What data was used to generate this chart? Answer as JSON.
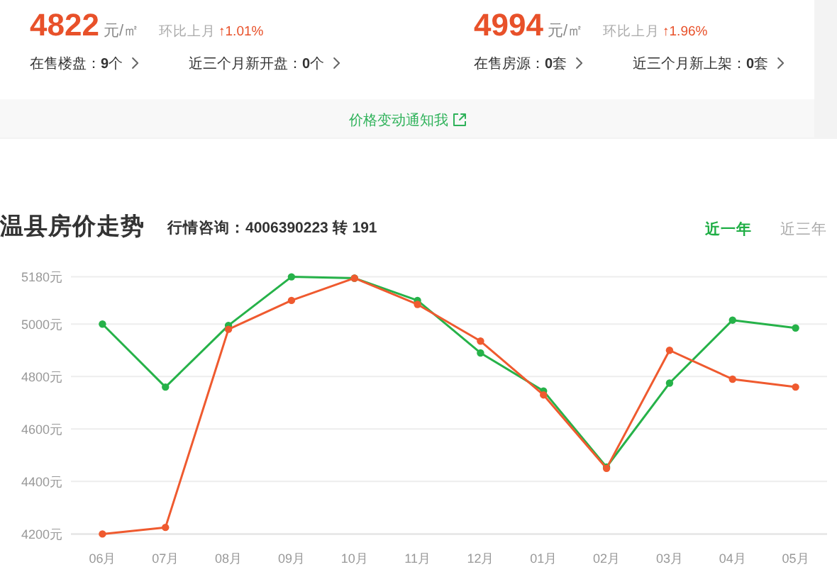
{
  "chart_data": [
    {
      "type": "other",
      "annotations": [
        "4822",
        "元/㎡",
        "环比上月",
        "↑1.01%",
        "4994",
        "元/㎡",
        "环比上月",
        "↑1.96%",
        "在售楼盘：**9**个",
        "近三个月新开盘：**0**个",
        "在售房源：**0**套",
        "近三个月新上架：**0**套",
        "价格变动通知我"
      ]
    },
    {
      "type": "line",
      "title": "温县房价走势",
      "subtitle": "行情咨询：4006390223 转 191",
      "annotations": [
        "近一年",
        "近三年"
      ],
      "categories": [
        "06月",
        "07月",
        "08月",
        "09月",
        "10月",
        "11月",
        "12月",
        "01月",
        "02月",
        "03月",
        "04月",
        "05月"
      ],
      "series": [
        {
          "color": "#26b249",
          "values": [
            5000,
            4760,
            4995,
            5180,
            5175,
            5090,
            4890,
            4745,
            4455,
            4775,
            5015,
            4985
          ]
        },
        {
          "color": "#ef5a2f",
          "values": [
            4200,
            4225,
            4980,
            5090,
            5175,
            5075,
            4935,
            4730,
            4450,
            4900,
            4790,
            4760
          ]
        }
      ],
      "ylim": [
        4200,
        5180
      ],
      "yticks": [
        {
          "value": 4200,
          "label": "4200元"
        },
        {
          "value": 4400,
          "label": "4400元"
        },
        {
          "value": 4600,
          "label": "4600元"
        },
        {
          "value": 4800,
          "label": "4800元"
        },
        {
          "value": 5000,
          "label": "5000元"
        },
        {
          "value": 5180,
          "label": "5180元"
        }
      ],
      "grid": "y",
      "marker": "circle",
      "line_style": "solid"
    }
  ]
}
